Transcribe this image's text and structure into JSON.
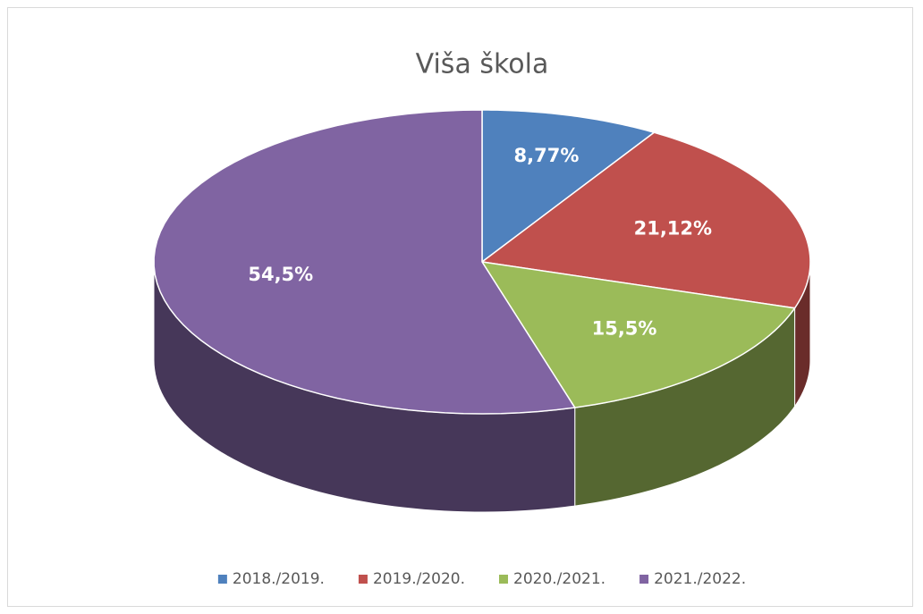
{
  "chart_data": {
    "type": "pie",
    "title": "Viša škola",
    "categories": [
      "2018./2019.",
      "2019./2020.",
      "2020./2021.",
      "2021./2022."
    ],
    "values": [
      8.77,
      21.12,
      15.5,
      54.5
    ],
    "value_labels": [
      "8,77%",
      "21,12%",
      "15,5%",
      "54,5%"
    ],
    "colors": [
      "#4f81bd",
      "#c0504d",
      "#9bbb59",
      "#8064a2"
    ],
    "legend": "bottom"
  }
}
